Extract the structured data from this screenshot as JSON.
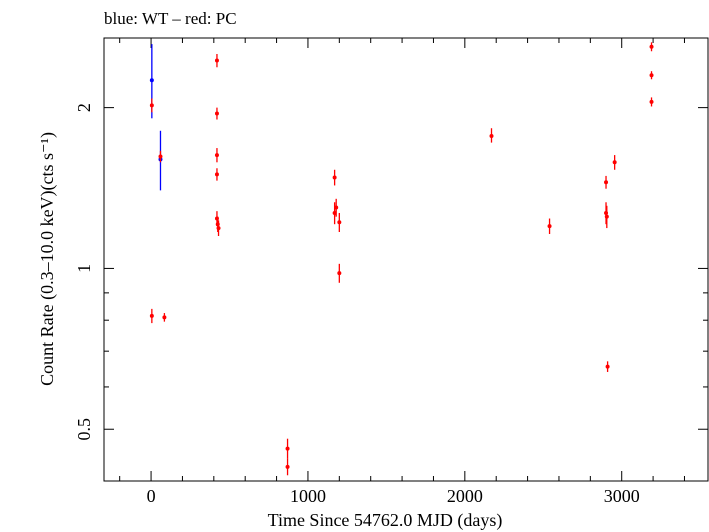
{
  "chart_data": {
    "type": "scatter",
    "title": "blue: WT – red: PC",
    "xlabel": "Time Since 54762.0 MJD (days)",
    "ylabel": "Count Rate (0.3–10.0 keV)(cts s⁻¹)",
    "xlim": [
      -300,
      3550
    ],
    "ylim": [
      0.4,
      2.7
    ],
    "yscale": "log",
    "x_ticks": [
      0,
      1000,
      2000,
      3000
    ],
    "x_tick_labels": [
      "0",
      "1000",
      "2000",
      "3000"
    ],
    "y_ticks": [
      0.5,
      1,
      2
    ],
    "y_tick_labels": [
      "0.5",
      "1",
      "2"
    ],
    "grid": false,
    "series": [
      {
        "name": "WT",
        "color": "#0000ff",
        "points": [
          {
            "x": 5,
            "y": 2.25,
            "ylo": 1.91,
            "yhi": 2.63
          },
          {
            "x": 60,
            "y": 1.6,
            "ylo": 1.4,
            "yhi": 1.81
          }
        ]
      },
      {
        "name": "PC",
        "color": "#ff0000",
        "points": [
          {
            "x": 5,
            "y": 2.02,
            "ylo": 1.96,
            "yhi": 2.08
          },
          {
            "x": 5,
            "y": 0.815,
            "ylo": 0.79,
            "yhi": 0.84
          },
          {
            "x": 60,
            "y": 1.62,
            "ylo": 1.58,
            "yhi": 1.66
          },
          {
            "x": 85,
            "y": 0.81,
            "ylo": 0.795,
            "yhi": 0.825
          },
          {
            "x": 420,
            "y": 2.45,
            "ylo": 2.38,
            "yhi": 2.52
          },
          {
            "x": 420,
            "y": 1.95,
            "ylo": 1.9,
            "yhi": 2.0
          },
          {
            "x": 420,
            "y": 1.63,
            "ylo": 1.58,
            "yhi": 1.68
          },
          {
            "x": 420,
            "y": 1.5,
            "ylo": 1.46,
            "yhi": 1.54
          },
          {
            "x": 420,
            "y": 1.24,
            "ylo": 1.2,
            "yhi": 1.28
          },
          {
            "x": 425,
            "y": 1.21,
            "ylo": 1.17,
            "yhi": 1.25
          },
          {
            "x": 430,
            "y": 1.19,
            "ylo": 1.15,
            "yhi": 1.23
          },
          {
            "x": 870,
            "y": 0.46,
            "ylo": 0.44,
            "yhi": 0.48
          },
          {
            "x": 870,
            "y": 0.425,
            "ylo": 0.41,
            "yhi": 0.44
          },
          {
            "x": 1170,
            "y": 1.48,
            "ylo": 1.43,
            "yhi": 1.53
          },
          {
            "x": 1170,
            "y": 1.27,
            "ylo": 1.21,
            "yhi": 1.33
          },
          {
            "x": 1180,
            "y": 1.3,
            "ylo": 1.25,
            "yhi": 1.35
          },
          {
            "x": 1200,
            "y": 1.22,
            "ylo": 1.17,
            "yhi": 1.27
          },
          {
            "x": 1200,
            "y": 0.98,
            "ylo": 0.94,
            "yhi": 1.02
          },
          {
            "x": 2170,
            "y": 1.77,
            "ylo": 1.72,
            "yhi": 1.83
          },
          {
            "x": 2540,
            "y": 1.2,
            "ylo": 1.16,
            "yhi": 1.24
          },
          {
            "x": 2900,
            "y": 1.45,
            "ylo": 1.41,
            "yhi": 1.49
          },
          {
            "x": 2900,
            "y": 1.27,
            "ylo": 1.21,
            "yhi": 1.33
          },
          {
            "x": 2905,
            "y": 1.25,
            "ylo": 1.19,
            "yhi": 1.31
          },
          {
            "x": 2910,
            "y": 0.655,
            "ylo": 0.64,
            "yhi": 0.67
          },
          {
            "x": 2955,
            "y": 1.58,
            "ylo": 1.53,
            "yhi": 1.63
          },
          {
            "x": 3190,
            "y": 2.6,
            "ylo": 2.55,
            "yhi": 2.65
          },
          {
            "x": 3190,
            "y": 2.3,
            "ylo": 2.26,
            "yhi": 2.34
          },
          {
            "x": 3190,
            "y": 2.05,
            "ylo": 2.01,
            "yhi": 2.09
          }
        ]
      }
    ]
  }
}
